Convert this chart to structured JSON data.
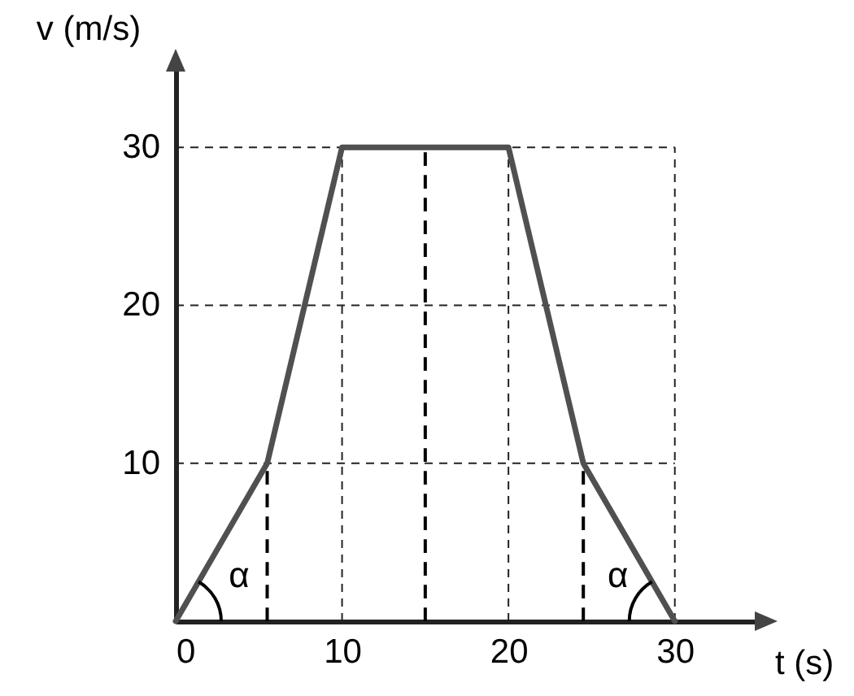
{
  "chart_data": {
    "type": "line",
    "xlabel": "t (s)",
    "ylabel": "v (m/s)",
    "x": [
      0,
      5.5,
      10,
      20,
      24.5,
      30
    ],
    "series": [
      {
        "color": "#505050",
        "values": [
          0,
          10,
          30,
          30,
          10,
          0
        ]
      }
    ],
    "xlim": [
      0,
      35
    ],
    "ylim": [
      0,
      35
    ],
    "xticks": [
      0,
      10,
      20,
      30
    ],
    "yticks": [
      10,
      20,
      30
    ],
    "grid": true,
    "marker": "none",
    "line_style": "solid",
    "ref_lines": [
      {
        "axis": "x",
        "value": 5.5,
        "color": "#000000",
        "line_style": "dashed"
      },
      {
        "axis": "x",
        "value": 15,
        "color": "#000000",
        "line_style": "dashed"
      },
      {
        "axis": "x",
        "value": 24.5,
        "color": "#000000",
        "line_style": "dashed"
      }
    ],
    "annotations": [
      "α",
      "α"
    ]
  }
}
